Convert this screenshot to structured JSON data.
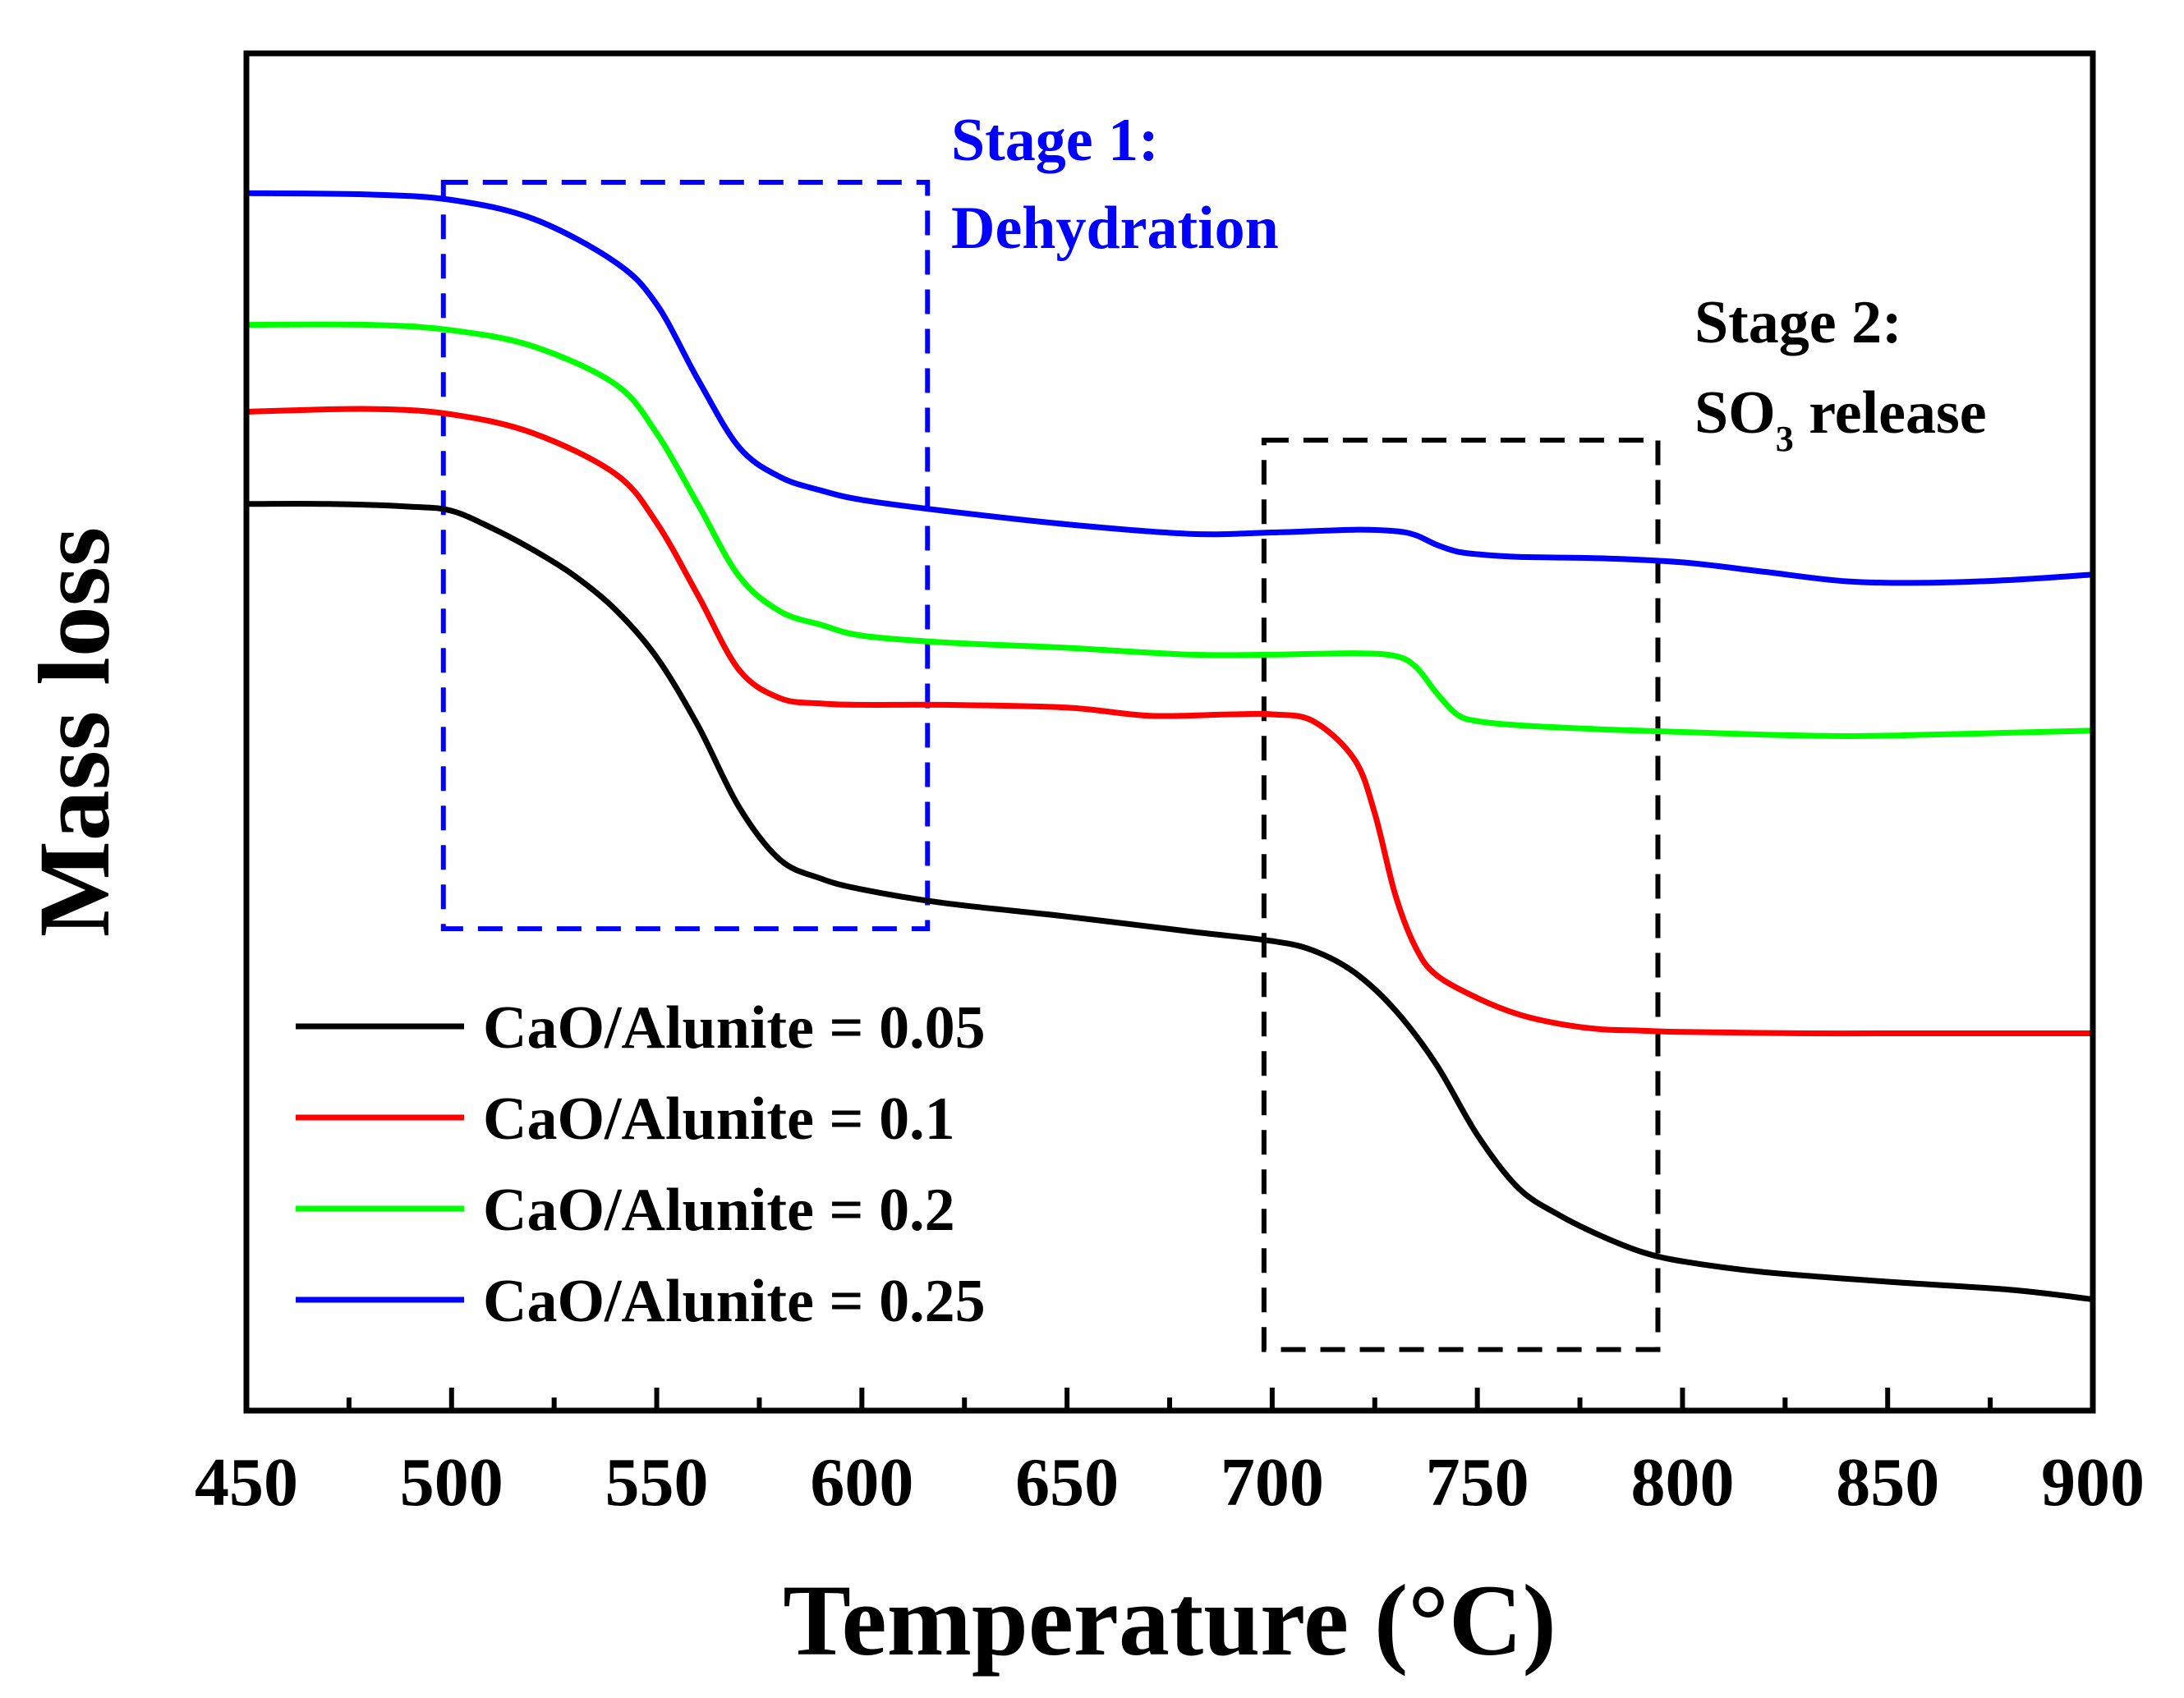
{
  "chart_data": {
    "type": "line",
    "title": "",
    "xlabel": "Temperature (°C)",
    "ylabel": "Mass loss",
    "xlim": [
      450,
      900
    ],
    "ylim": [
      0,
      100
    ],
    "xticks": [
      450,
      500,
      550,
      600,
      650,
      700,
      750,
      800,
      850,
      900
    ],
    "grid": false,
    "legend_position": "bottom-left",
    "series": [
      {
        "name": "CaO/Alunite = 0.05",
        "color": "#000000",
        "x": [
          450,
          470,
          490,
          500,
          510,
          520,
          530,
          540,
          550,
          560,
          570,
          580,
          590,
          600,
          620,
          650,
          680,
          700,
          710,
          720,
          730,
          740,
          750,
          760,
          770,
          780,
          790,
          800,
          820,
          850,
          880,
          900
        ],
        "y": [
          66.8,
          66.8,
          66.6,
          66.3,
          65.0,
          63.4,
          61.5,
          59.0,
          55.5,
          50.5,
          44.5,
          40.6,
          39.2,
          38.4,
          37.4,
          36.4,
          35.3,
          34.6,
          33.9,
          32.3,
          29.5,
          25.5,
          20.3,
          16.4,
          14.4,
          12.9,
          11.7,
          11.0,
          10.2,
          9.5,
          8.9,
          8.2
        ]
      },
      {
        "name": "CaO/Alunite = 0.1",
        "color": "#ff0000",
        "x": [
          450,
          480,
          500,
          520,
          540,
          550,
          560,
          570,
          580,
          590,
          600,
          620,
          650,
          670,
          690,
          700,
          710,
          720,
          725,
          730,
          735,
          740,
          750,
          760,
          770,
          780,
          790,
          800,
          830,
          860,
          900
        ],
        "y": [
          73.6,
          73.8,
          73.4,
          72.0,
          69.0,
          65.4,
          60.1,
          54.6,
          52.5,
          52.1,
          52.0,
          52.0,
          51.8,
          51.2,
          51.3,
          51.3,
          50.8,
          48.0,
          44.0,
          38.0,
          34.1,
          32.1,
          30.4,
          29.2,
          28.5,
          28.1,
          28.0,
          27.9,
          27.8,
          27.8,
          27.8
        ]
      },
      {
        "name": "CaO/Alunite = 0.2",
        "color": "#00ff00",
        "x": [
          450,
          480,
          500,
          520,
          540,
          550,
          560,
          570,
          580,
          590,
          600,
          620,
          650,
          680,
          700,
          720,
          730,
          735,
          740,
          745,
          750,
          760,
          780,
          800,
          820,
          840,
          860,
          900
        ],
        "y": [
          80.0,
          80.0,
          79.6,
          78.4,
          75.6,
          72.0,
          66.8,
          61.5,
          58.9,
          57.9,
          57.1,
          56.6,
          56.2,
          55.7,
          55.7,
          55.8,
          55.6,
          54.8,
          52.9,
          51.3,
          50.8,
          50.5,
          50.2,
          50.0,
          49.8,
          49.7,
          49.8,
          50.1
        ]
      },
      {
        "name": "CaO/Alunite = 0.25",
        "color": "#0000ff",
        "x": [
          450,
          480,
          500,
          520,
          540,
          550,
          560,
          570,
          580,
          590,
          600,
          620,
          650,
          680,
          700,
          720,
          730,
          735,
          740,
          745,
          750,
          760,
          780,
          800,
          820,
          840,
          860,
          880,
          900
        ],
        "y": [
          89.7,
          89.6,
          89.2,
          87.8,
          84.6,
          81.5,
          76.0,
          71.0,
          68.8,
          67.8,
          67.1,
          66.3,
          65.3,
          64.6,
          64.7,
          64.9,
          64.8,
          64.5,
          63.8,
          63.3,
          63.1,
          62.9,
          62.8,
          62.5,
          61.8,
          61.1,
          61.0,
          61.2,
          61.6
        ]
      }
    ],
    "annotations": [
      {
        "lines": [
          "Stage 1:",
          "Dehydration"
        ],
        "color": "#0000ff",
        "box_x": [
          498,
          616
        ],
        "box_y": [
          35.5,
          90.5
        ]
      },
      {
        "lines": [
          "Stage 2:",
          "SO3 release"
        ],
        "color": "#000000",
        "box_x": [
          698,
          794
        ],
        "box_y": [
          4.5,
          71.5
        ]
      }
    ]
  }
}
